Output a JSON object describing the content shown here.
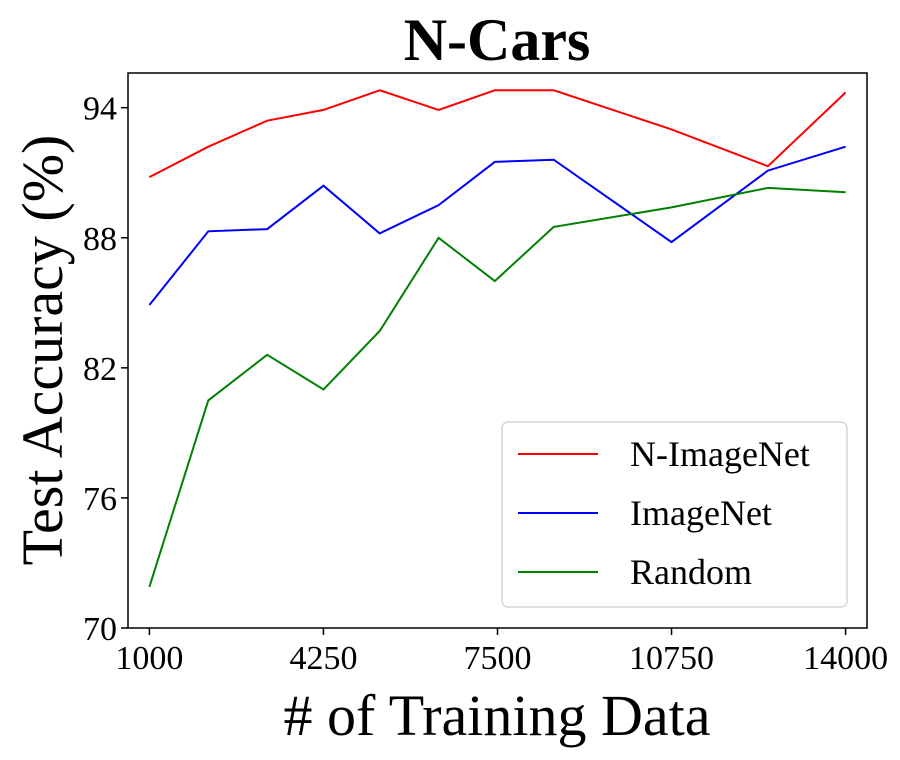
{
  "chart_data": {
    "type": "line",
    "title": "N-Cars",
    "xlabel": "# of Training Data",
    "ylabel": "Test Accuracy (%)",
    "xlim": [
      600,
      14400
    ],
    "ylim": [
      70,
      95.6
    ],
    "xticks": [
      1000,
      4250,
      7500,
      10750,
      14000
    ],
    "yticks": [
      70,
      76,
      82,
      88,
      94
    ],
    "x": [
      1000,
      2100,
      3200,
      4250,
      5300,
      6400,
      7450,
      8550,
      10750,
      12550,
      14000
    ],
    "grid": false,
    "legend_position": "lower-right",
    "series": [
      {
        "name": "N-ImageNet",
        "color": "#ff0000",
        "values": [
          90.8,
          92.2,
          93.4,
          93.9,
          94.8,
          93.9,
          94.8,
          94.8,
          93.0,
          91.3,
          94.7
        ]
      },
      {
        "name": "ImageNet",
        "color": "#0000ff",
        "values": [
          84.9,
          88.3,
          88.4,
          90.4,
          88.2,
          89.5,
          91.5,
          91.6,
          87.8,
          91.1,
          92.2
        ]
      },
      {
        "name": "Random",
        "color": "#008000",
        "values": [
          71.9,
          80.5,
          82.6,
          81.0,
          83.7,
          88.0,
          86.0,
          88.5,
          89.4,
          90.3,
          90.1
        ]
      }
    ]
  }
}
